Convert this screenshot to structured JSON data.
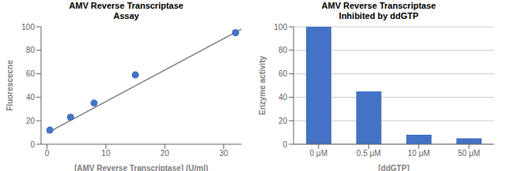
{
  "chart_data": [
    {
      "type": "scatter",
      "title": "AMV Reverse Transcriptase\nAssay",
      "x_label": "[AMV Reverse Transcriptase] (U/ml)",
      "y_label": "Fluorescecne",
      "series": [
        {
          "type": "scatter",
          "color": "#4472C4",
          "x": [
            0.5,
            4,
            8,
            15,
            32
          ],
          "values": [
            12,
            23,
            35,
            59,
            95
          ]
        },
        {
          "type": "line",
          "color": "#808080",
          "x": [
            0,
            33
          ],
          "values": [
            9.5,
            98
          ]
        }
      ],
      "xlim": [
        -1,
        33
      ],
      "ylim": [
        0,
        100
      ],
      "xticks": [
        0,
        10,
        20,
        30
      ],
      "yticks": [
        0,
        20,
        40,
        60,
        80,
        100
      ],
      "grid": false
    },
    {
      "type": "bar",
      "title": "AMV Reverse Transcriptase\nInhibited by ddGTP",
      "x_label": "[ddGTP]",
      "y_label": "Enzyme activity",
      "categories": [
        "0 μM",
        "0.5 μM",
        "10 μM",
        "50 μM"
      ],
      "values": [
        100,
        45,
        8,
        5
      ],
      "color": "#4472C4",
      "ylim": [
        0,
        100
      ],
      "yticks": [
        0,
        20,
        40,
        60,
        80,
        100
      ],
      "grid": true
    }
  ]
}
